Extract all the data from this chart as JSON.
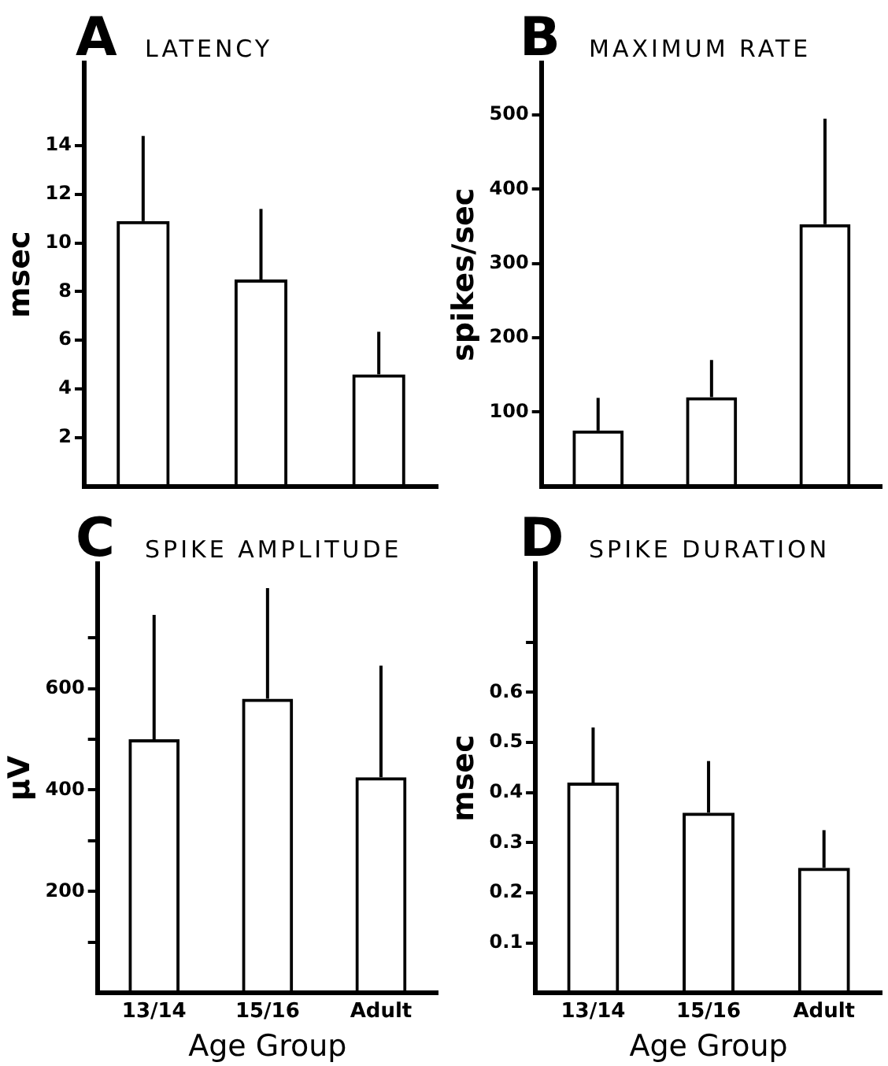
{
  "chart_data": [
    {
      "type": "bar",
      "title": "A",
      "subtitle": "LATENCY",
      "ylabel": "msec",
      "categories": [
        null,
        null,
        null
      ],
      "values": [
        10.9,
        8.5,
        4.6
      ],
      "errors": [
        [
          10.9,
          14.4
        ],
        [
          8.5,
          11.4
        ],
        [
          4.6,
          6.35
        ]
      ],
      "color": "#000000",
      "ylim": [
        0,
        17.4
      ],
      "yticks": [
        2,
        4,
        6,
        8,
        10,
        12,
        14
      ],
      "tick_labels": "y"
    },
    {
      "type": "bar",
      "title": "B",
      "subtitle": "MAXIMUM RATE",
      "ylabel": "spikes/sec",
      "categories": [
        null,
        null,
        null
      ],
      "values": [
        75,
        120,
        353
      ],
      "errors": [
        [
          75,
          119
        ],
        [
          120,
          170
        ],
        [
          353,
          495
        ]
      ],
      "color": "#000000",
      "ylim": [
        0,
        570
      ],
      "yticks": [
        100,
        200,
        300,
        400,
        500
      ],
      "tick_labels": "y"
    },
    {
      "type": "bar",
      "title": "C",
      "subtitle": "SPIKE AMPLITUDE",
      "xlabel": "Age Group",
      "ylabel": "μV",
      "categories": [
        "13/14",
        "15/16",
        "Adult"
      ],
      "values": [
        500,
        580,
        425
      ],
      "errors": [
        [
          500,
          745
        ],
        [
          580,
          798
        ],
        [
          425,
          645
        ]
      ],
      "color": "#000000",
      "ylim": [
        0,
        846
      ],
      "yticks": [
        {
          "value": 100,
          "label": null
        },
        200,
        {
          "value": 300,
          "label": null
        },
        400,
        {
          "value": 500,
          "label": null
        },
        600,
        {
          "value": 700,
          "label": null
        }
      ]
    },
    {
      "type": "bar",
      "title": "D",
      "subtitle": "SPIKE DURATION",
      "xlabel": "Age Group",
      "ylabel": "msec",
      "categories": [
        "13/14",
        "15/16",
        "Adult"
      ],
      "values": [
        0.42,
        0.36,
        0.25
      ],
      "errors": [
        [
          0.42,
          0.53
        ],
        [
          0.36,
          0.463
        ],
        [
          0.25,
          0.325
        ]
      ],
      "color": "#000000",
      "ylim": [
        0,
        0.857
      ],
      "yticks": [
        0.1,
        0.2,
        0.3,
        0.4,
        0.5,
        0.6,
        {
          "value": 0.7,
          "label": null
        }
      ]
    }
  ]
}
